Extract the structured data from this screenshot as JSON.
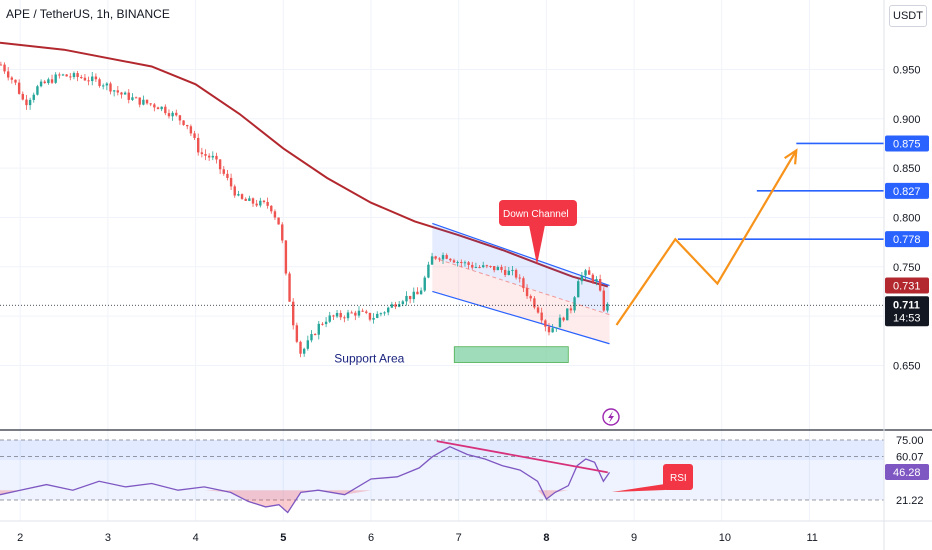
{
  "title": "APE / TetherUS, 1h, BINANCE",
  "unit_button": "USDT",
  "colors": {
    "up": "#26a69a",
    "down": "#ef5350",
    "ma": "#b2282e",
    "channel": "#2962ff",
    "projection": "#f7931a",
    "rsi_line": "#7e57c2",
    "divergence": "#d6317a",
    "support": "#7fd0a2",
    "callout": "#f23645"
  },
  "chart_data": [
    {
      "type": "candlestick",
      "symbol": "APE / TetherUS",
      "interval": "1h",
      "exchange": "BINANCE",
      "y_ticks": [
        0.95,
        0.9,
        0.85,
        0.8,
        0.75,
        0.65
      ],
      "y_tick_labels": [
        "0.950",
        "0.900",
        "0.850",
        "0.800",
        "0.750",
        "0.650"
      ],
      "ylim": [
        0.615,
        0.99
      ],
      "x_ticks": [
        2,
        3,
        4,
        5,
        6,
        7,
        8,
        9,
        10,
        11
      ],
      "x_tick_labels": [
        "2",
        "3",
        "4",
        "5",
        "6",
        "7",
        "8",
        "9",
        "10",
        "11"
      ],
      "xlim": [
        1.77,
        11.85
      ],
      "price_path": [
        [
          1.78,
          0.955
        ],
        [
          1.95,
          0.935
        ],
        [
          2.05,
          0.915
        ],
        [
          2.2,
          0.932
        ],
        [
          2.45,
          0.944
        ],
        [
          2.7,
          0.942
        ],
        [
          2.95,
          0.936
        ],
        [
          3.15,
          0.925
        ],
        [
          3.35,
          0.918
        ],
        [
          3.6,
          0.912
        ],
        [
          3.9,
          0.895
        ],
        [
          4.05,
          0.865
        ],
        [
          4.2,
          0.86
        ],
        [
          4.35,
          0.84
        ],
        [
          4.5,
          0.818
        ],
        [
          4.65,
          0.815
        ],
        [
          4.85,
          0.812
        ],
        [
          4.97,
          0.79
        ],
        [
          5.03,
          0.74
        ],
        [
          5.12,
          0.69
        ],
        [
          5.2,
          0.662
        ],
        [
          5.3,
          0.675
        ],
        [
          5.4,
          0.69
        ],
        [
          5.5,
          0.698
        ],
        [
          5.65,
          0.7
        ],
        [
          5.85,
          0.704
        ],
        [
          6.0,
          0.698
        ],
        [
          6.15,
          0.705
        ],
        [
          6.35,
          0.718
        ],
        [
          6.55,
          0.722
        ],
        [
          6.7,
          0.76
        ],
        [
          6.85,
          0.762
        ],
        [
          7.0,
          0.755
        ],
        [
          7.2,
          0.75
        ],
        [
          7.45,
          0.748
        ],
        [
          7.65,
          0.742
        ],
        [
          7.8,
          0.72
        ],
        [
          7.92,
          0.705
        ],
        [
          8.02,
          0.685
        ],
        [
          8.12,
          0.692
        ],
        [
          8.3,
          0.71
        ],
        [
          8.35,
          0.738
        ],
        [
          8.45,
          0.743
        ],
        [
          8.58,
          0.735
        ],
        [
          8.65,
          0.708
        ],
        [
          8.72,
          0.711
        ]
      ],
      "moving_average": [
        [
          1.77,
          0.977
        ],
        [
          2.5,
          0.97
        ],
        [
          3.5,
          0.953
        ],
        [
          4.0,
          0.935
        ],
        [
          4.5,
          0.905
        ],
        [
          5.0,
          0.87
        ],
        [
          5.5,
          0.84
        ],
        [
          6.0,
          0.815
        ],
        [
          6.5,
          0.796
        ],
        [
          7.0,
          0.782
        ],
        [
          7.5,
          0.767
        ],
        [
          8.0,
          0.75
        ],
        [
          8.3,
          0.74
        ],
        [
          8.7,
          0.73
        ]
      ],
      "channel": {
        "upper": [
          [
            6.7,
            0.794
          ],
          [
            8.72,
            0.731
          ]
        ],
        "lower": [
          [
            6.7,
            0.725
          ],
          [
            8.72,
            0.672
          ]
        ],
        "label": "Down Channel"
      },
      "support_area": {
        "label": "Support Area",
        "x": [
          6.95,
          8.25
        ],
        "y": [
          0.653,
          0.669
        ]
      },
      "projection_path": [
        [
          8.8,
          0.691
        ],
        [
          9.47,
          0.778
        ],
        [
          9.95,
          0.733
        ],
        [
          10.85,
          0.868
        ]
      ],
      "target_levels": [
        {
          "value": 0.875,
          "label": "0.875",
          "x_start": 10.85
        },
        {
          "value": 0.827,
          "label": "0.827",
          "x_start": 10.4
        },
        {
          "value": 0.778,
          "label": "0.778",
          "x_start": 9.5
        }
      ],
      "price_badges": [
        {
          "value": 0.731,
          "label": "0.731",
          "kind": "ma"
        },
        {
          "value": 0.711,
          "label": "0.711",
          "kind": "last",
          "countdown": "14:53"
        }
      ],
      "last_price": 0.711
    },
    {
      "type": "line",
      "indicator": "RSI",
      "label": "RSI",
      "ylim": [
        0,
        100
      ],
      "levels": [
        75,
        60.07,
        21.22
      ],
      "level_labels": [
        "75.00",
        "60.07",
        "21.22"
      ],
      "current": 46.28,
      "current_label": "46.28",
      "x": [
        1.77,
        2.0,
        2.3,
        2.6,
        2.9,
        3.2,
        3.5,
        3.8,
        4.1,
        4.4,
        4.6,
        4.8,
        4.95,
        5.05,
        5.2,
        5.4,
        5.7,
        6.0,
        6.3,
        6.55,
        6.7,
        6.9,
        7.1,
        7.3,
        7.5,
        7.7,
        7.9,
        8.0,
        8.1,
        8.25,
        8.35,
        8.45,
        8.55,
        8.65,
        8.72
      ],
      "y": [
        26,
        30,
        35,
        30,
        38,
        33,
        36,
        30,
        33,
        28,
        20,
        15,
        17,
        10,
        28,
        30,
        26,
        40,
        42,
        50,
        60,
        69,
        62,
        58,
        52,
        48,
        38,
        22,
        28,
        34,
        52,
        58,
        55,
        38,
        46
      ],
      "divergence_line": [
        [
          6.75,
          74
        ],
        [
          8.7,
          46
        ]
      ]
    }
  ]
}
